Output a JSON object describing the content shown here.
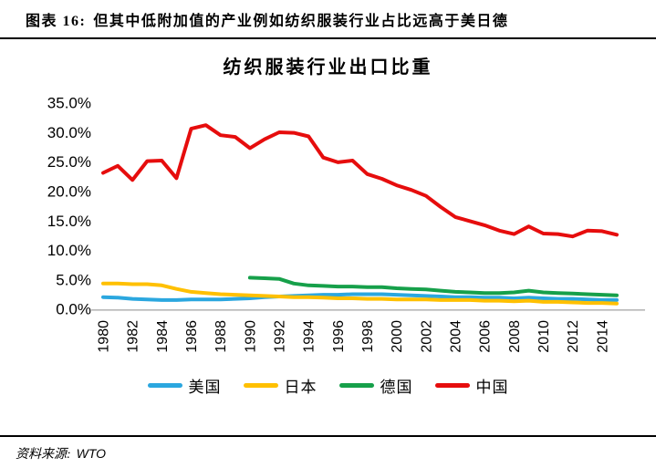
{
  "header": {
    "figure_label": "图表 16:",
    "figure_title": "但其中低附加值的产业例如纺织服装行业占比远高于美日德"
  },
  "footer": {
    "source_label": "资料来源:",
    "source_value": "WTO"
  },
  "chart_data": {
    "type": "line",
    "title": "纺织服装行业出口比重",
    "xlabel": "",
    "ylabel": "",
    "ylim": [
      0,
      35
    ],
    "y_tick_step": 5,
    "y_tick_format": "0.0%",
    "grid": "off",
    "legend_position": "bottom",
    "axis_color": "#b8b8b8",
    "x": [
      1980,
      1981,
      1982,
      1983,
      1984,
      1985,
      1986,
      1987,
      1988,
      1989,
      1990,
      1991,
      1992,
      1993,
      1994,
      1995,
      1996,
      1997,
      1998,
      1999,
      2000,
      2001,
      2002,
      2003,
      2004,
      2005,
      2006,
      2007,
      2008,
      2009,
      2010,
      2011,
      2012,
      2013,
      2014,
      2015
    ],
    "x_tick_labels": [
      "1980",
      "1982",
      "1984",
      "1986",
      "1988",
      "1990",
      "1992",
      "1994",
      "1996",
      "1998",
      "2000",
      "2002",
      "2004",
      "2006",
      "2008",
      "2010",
      "2012",
      "2014"
    ],
    "series": [
      {
        "id": "usa",
        "name": "美国",
        "color": "#2ba7df",
        "values": [
          2.0,
          1.9,
          1.7,
          1.6,
          1.5,
          1.5,
          1.6,
          1.6,
          1.6,
          1.7,
          1.8,
          2.0,
          2.1,
          2.2,
          2.3,
          2.4,
          2.4,
          2.5,
          2.5,
          2.5,
          2.4,
          2.3,
          2.2,
          2.1,
          2.0,
          2.0,
          1.9,
          1.9,
          1.8,
          1.9,
          1.8,
          1.7,
          1.7,
          1.6,
          1.5,
          1.5
        ]
      },
      {
        "id": "japan",
        "name": "日本",
        "color": "#ffc000",
        "values": [
          4.3,
          4.3,
          4.2,
          4.2,
          4.0,
          3.4,
          2.9,
          2.7,
          2.5,
          2.4,
          2.3,
          2.2,
          2.1,
          2.0,
          2.0,
          1.9,
          1.8,
          1.8,
          1.7,
          1.7,
          1.6,
          1.6,
          1.6,
          1.5,
          1.5,
          1.5,
          1.4,
          1.4,
          1.3,
          1.4,
          1.2,
          1.2,
          1.1,
          1.0,
          1.0,
          0.9
        ]
      },
      {
        "id": "germany",
        "name": "德国",
        "color": "#16a04a",
        "values": [
          null,
          null,
          null,
          null,
          null,
          null,
          null,
          null,
          null,
          null,
          5.3,
          5.2,
          5.1,
          4.3,
          4.0,
          3.9,
          3.8,
          3.8,
          3.7,
          3.7,
          3.5,
          3.4,
          3.3,
          3.1,
          2.9,
          2.8,
          2.7,
          2.7,
          2.8,
          3.1,
          2.8,
          2.7,
          2.6,
          2.5,
          2.4,
          2.3
        ]
      },
      {
        "id": "china",
        "name": "中国",
        "color": "#e60d0d",
        "values": [
          23.1,
          24.3,
          21.9,
          25.1,
          25.2,
          22.2,
          30.6,
          31.2,
          29.5,
          29.2,
          27.3,
          28.8,
          30.0,
          29.9,
          29.3,
          25.7,
          24.9,
          25.2,
          22.9,
          22.1,
          21.0,
          20.2,
          19.2,
          17.3,
          15.6,
          14.9,
          14.2,
          13.3,
          12.7,
          14.0,
          12.8,
          12.7,
          12.3,
          13.3,
          13.2,
          12.6
        ]
      }
    ]
  }
}
